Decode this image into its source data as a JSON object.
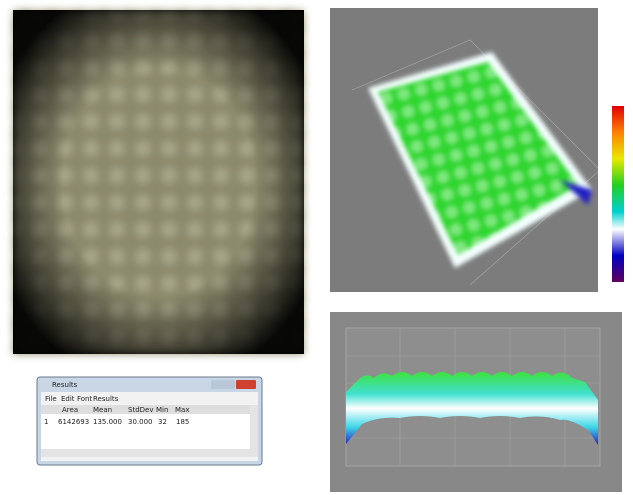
{
  "results_window": {
    "title": "Results",
    "menu": [
      "File",
      "Edit",
      "Font",
      "Results"
    ],
    "headers": [
      "Area",
      "Mean",
      "StdDev",
      "Min",
      "Max"
    ],
    "rows": [
      [
        "1",
        "6142693",
        "135.000",
        "30.000",
        "32",
        "185"
      ]
    ]
  }
}
